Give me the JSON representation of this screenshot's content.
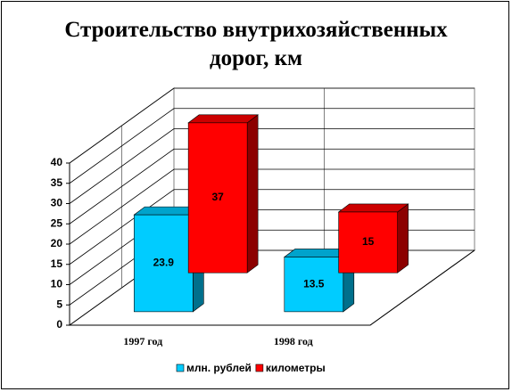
{
  "chart_data": {
    "type": "bar3d",
    "title": "Строительство внутрихозяйственных дорог, км",
    "categories": [
      "1997 год",
      "1998 год"
    ],
    "series": [
      {
        "name": "млн. рублей",
        "color": "#00ccff",
        "values": [
          23.9,
          13.5
        ]
      },
      {
        "name": "километры",
        "color": "#ff0000",
        "values": [
          37,
          15
        ]
      }
    ],
    "ylim": [
      0,
      40
    ],
    "yticks": [
      0,
      5,
      10,
      15,
      20,
      25,
      30,
      35,
      40
    ],
    "grid": true,
    "legend": "bottom"
  }
}
